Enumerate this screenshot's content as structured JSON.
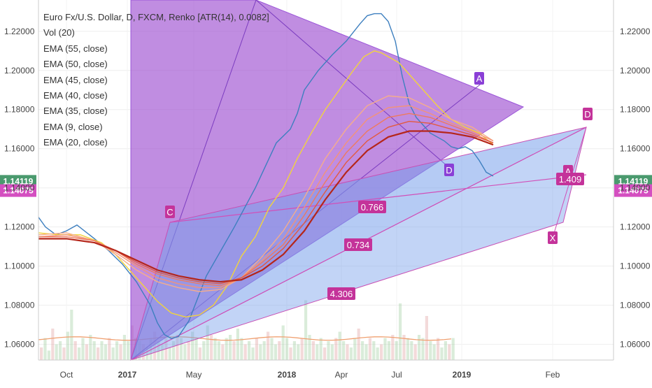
{
  "chart_data": {
    "type": "line",
    "title": "Euro Fx/U.S. Dollar, D, FXCM, Renko [ATR(14), 0.0082]",
    "indicators": [
      "Vol (20)",
      "EMA (55, close)",
      "EMA (50, close)",
      "EMA (45, close)",
      "EMA (40, close)",
      "EMA (35, close)",
      "EMA (9, close)",
      "EMA (20, close)"
    ],
    "ylim": [
      1.052,
      1.236
    ],
    "y_ticks": [
      "1.22000",
      "1.20000",
      "1.18000",
      "1.16000",
      "1.14000",
      "1.12000",
      "1.10000",
      "1.08000",
      "1.06000"
    ],
    "y_tick_values": [
      1.22,
      1.2,
      1.18,
      1.16,
      1.14,
      1.12,
      1.1,
      1.08,
      1.06
    ],
    "x_ticks": [
      "Oct",
      "2017",
      "May",
      "2018",
      "Apr",
      "Jul",
      "2019",
      "Feb"
    ],
    "price_tags": [
      {
        "label": "1.14119",
        "value": 1.14119,
        "color": "#4a9a6e"
      },
      {
        "label": "1.14075",
        "value": 1.14075,
        "color": "#d44fc0"
      }
    ],
    "series": [
      {
        "name": "EMA (9, close)",
        "color": "#3d7fbf",
        "x": [
          0,
          10,
          25,
          40,
          55,
          80,
          100,
          120,
          140,
          160,
          170,
          180,
          190,
          200,
          215,
          240,
          280,
          310,
          340,
          360,
          370,
          380,
          400,
          420,
          440,
          460,
          470,
          480,
          490,
          500,
          510,
          520,
          530,
          540,
          550,
          560,
          570,
          580,
          590,
          600,
          610,
          620,
          630,
          640,
          650
        ],
        "values": [
          1.125,
          1.12,
          1.116,
          1.118,
          1.121,
          1.114,
          1.108,
          1.101,
          1.092,
          1.08,
          1.071,
          1.065,
          1.063,
          1.064,
          1.072,
          1.095,
          1.12,
          1.14,
          1.163,
          1.17,
          1.178,
          1.19,
          1.2,
          1.208,
          1.215,
          1.224,
          1.228,
          1.229,
          1.229,
          1.225,
          1.215,
          1.197,
          1.183,
          1.176,
          1.172,
          1.168,
          1.166,
          1.164,
          1.161,
          1.16,
          1.161,
          1.159,
          1.154,
          1.148,
          1.146
        ]
      },
      {
        "name": "EMA (20, close)",
        "color": "#f2d43c",
        "x": [
          0,
          30,
          60,
          90,
          110,
          130,
          150,
          170,
          190,
          210,
          230,
          250,
          270,
          290,
          310,
          330,
          350,
          370,
          390,
          410,
          430,
          450,
          465,
          480,
          490,
          500,
          515,
          530,
          550,
          570,
          590,
          610,
          630,
          650
        ],
        "values": [
          1.117,
          1.116,
          1.116,
          1.112,
          1.106,
          1.098,
          1.09,
          1.082,
          1.076,
          1.074,
          1.075,
          1.08,
          1.09,
          1.105,
          1.115,
          1.13,
          1.14,
          1.155,
          1.168,
          1.18,
          1.19,
          1.2,
          1.207,
          1.21,
          1.209,
          1.207,
          1.204,
          1.198,
          1.19,
          1.182,
          1.175,
          1.171,
          1.168,
          1.162
        ]
      },
      {
        "name": "EMA (35, close)",
        "color": "#f6ad8a",
        "x": [
          0,
          40,
          80,
          110,
          140,
          170,
          200,
          230,
          260,
          290,
          320,
          350,
          380,
          410,
          440,
          470,
          500,
          530,
          560,
          590,
          620,
          650
        ],
        "values": [
          1.116,
          1.117,
          1.113,
          1.106,
          1.098,
          1.092,
          1.089,
          1.087,
          1.088,
          1.094,
          1.105,
          1.118,
          1.135,
          1.155,
          1.17,
          1.182,
          1.187,
          1.186,
          1.181,
          1.175,
          1.171,
          1.164
        ]
      },
      {
        "name": "EMA (40, close)",
        "color": "#f39378",
        "x": [
          0,
          40,
          80,
          110,
          140,
          170,
          200,
          230,
          260,
          290,
          320,
          350,
          380,
          410,
          440,
          470,
          500,
          530,
          560,
          590,
          620,
          650
        ],
        "values": [
          1.115,
          1.116,
          1.113,
          1.107,
          1.1,
          1.094,
          1.091,
          1.089,
          1.089,
          1.094,
          1.103,
          1.114,
          1.13,
          1.148,
          1.163,
          1.175,
          1.181,
          1.182,
          1.178,
          1.173,
          1.169,
          1.164
        ]
      },
      {
        "name": "EMA (45, close)",
        "color": "#ee7a5e",
        "x": [
          0,
          40,
          80,
          110,
          140,
          170,
          200,
          230,
          260,
          290,
          320,
          350,
          380,
          410,
          440,
          470,
          500,
          530,
          560,
          590,
          620,
          650
        ],
        "values": [
          1.115,
          1.115,
          1.113,
          1.108,
          1.101,
          1.096,
          1.093,
          1.091,
          1.09,
          1.094,
          1.102,
          1.111,
          1.126,
          1.143,
          1.158,
          1.169,
          1.176,
          1.178,
          1.176,
          1.172,
          1.168,
          1.163
        ]
      },
      {
        "name": "EMA (50, close)",
        "color": "#e25a3f",
        "x": [
          0,
          40,
          80,
          110,
          140,
          170,
          200,
          230,
          260,
          290,
          320,
          350,
          380,
          410,
          440,
          470,
          500,
          530,
          560,
          590,
          620,
          650
        ],
        "values": [
          1.114,
          1.114,
          1.112,
          1.108,
          1.102,
          1.097,
          1.094,
          1.092,
          1.091,
          1.094,
          1.1,
          1.109,
          1.122,
          1.138,
          1.153,
          1.164,
          1.171,
          1.174,
          1.173,
          1.17,
          1.167,
          1.163
        ]
      },
      {
        "name": "EMA (55, close)",
        "color": "#b5261a",
        "x": [
          0,
          40,
          80,
          110,
          140,
          170,
          200,
          230,
          260,
          290,
          320,
          350,
          380,
          410,
          440,
          470,
          500,
          530,
          560,
          590,
          620,
          650
        ],
        "values": [
          1.114,
          1.114,
          1.112,
          1.108,
          1.103,
          1.098,
          1.095,
          1.093,
          1.092,
          1.093,
          1.098,
          1.106,
          1.118,
          1.134,
          1.148,
          1.159,
          1.166,
          1.169,
          1.169,
          1.168,
          1.166,
          1.162
        ]
      }
    ],
    "volume_ma": {
      "color": "#f0a070",
      "value": 1.063
    },
    "volume_bars": [
      0.2,
      0.35,
      0.15,
      0.5,
      0.25,
      0.3,
      0.2,
      0.45,
      0.8,
      0.3,
      0.2,
      0.35,
      0.25,
      0.4,
      0.3,
      0.2,
      0.3,
      0.25,
      0.35,
      0.2,
      0.3,
      0.25,
      0.4,
      0.3,
      0.55,
      0.35,
      0.3,
      0.25,
      0.2,
      0.35,
      0.45,
      0.3,
      0.25,
      0.35,
      0.2,
      0.3,
      0.4,
      0.35,
      0.25,
      0.3,
      0.45,
      0.35,
      0.2,
      0.3,
      0.55,
      0.4,
      0.35,
      0.3,
      0.25,
      0.35,
      0.4,
      0.3,
      0.5,
      0.35,
      0.25,
      0.3,
      0.2,
      0.35,
      0.25,
      0.3,
      0.45,
      0.35,
      0.25,
      0.3,
      0.55,
      0.35,
      0.2,
      0.3,
      0.25,
      0.35,
      0.95,
      0.4,
      0.3,
      0.25,
      0.35,
      0.2,
      0.3,
      0.25,
      0.35,
      0.45,
      0.3,
      0.25,
      0.2,
      0.35,
      0.5,
      0.3,
      0.25,
      0.35,
      0.3,
      0.2,
      0.25,
      0.35,
      0.3,
      0.4,
      0.3,
      0.9,
      0.4,
      0.35,
      0.3,
      0.25,
      0.4,
      0.35,
      0.7,
      0.3,
      0.25,
      0.35,
      0.2,
      0.3,
      0.25,
      0.35
    ],
    "pattern_labels": [
      "A",
      "C",
      "D",
      "A",
      "D",
      "X",
      "1.409",
      "0.766",
      "0.734",
      "4.306"
    ]
  }
}
